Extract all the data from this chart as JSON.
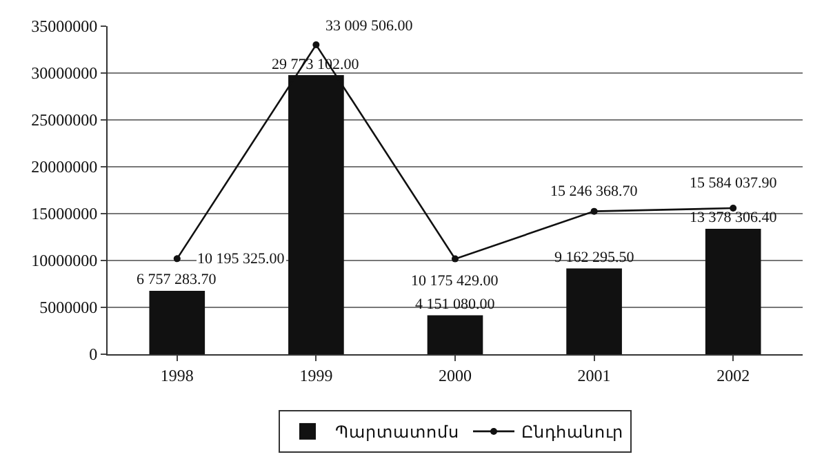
{
  "chart_data": {
    "type": "bar",
    "categories": [
      "1998",
      "1999",
      "2000",
      "2001",
      "2002"
    ],
    "series": [
      {
        "name": "Պարտատոմս",
        "color": "#111111",
        "values": [
          6757283.7,
          29773102.0,
          4151080.0,
          9162295.5,
          13378306.4
        ],
        "value_labels": [
          "6 757 283.70",
          "29 773 102.00",
          "4 151 080.00",
          "9 162 295.50",
          "13 378 306.40"
        ]
      },
      {
        "name": "Ընդհանուր",
        "type": "line",
        "color": "#111111",
        "marker": "circle",
        "values": [
          10195325.0,
          33009506.0,
          10175429.0,
          15246368.7,
          15584037.9
        ],
        "value_labels": [
          "10 195 325.00",
          "33 009 506.00",
          "10 175 429.00",
          "15 246 368.70",
          "15 584 037.90"
        ]
      }
    ],
    "ylim": [
      0,
      35000000
    ],
    "yticks": [
      0,
      5000000,
      10000000,
      15000000,
      20000000,
      25000000,
      30000000,
      35000000
    ],
    "grid": "y",
    "legend": "bottom"
  }
}
